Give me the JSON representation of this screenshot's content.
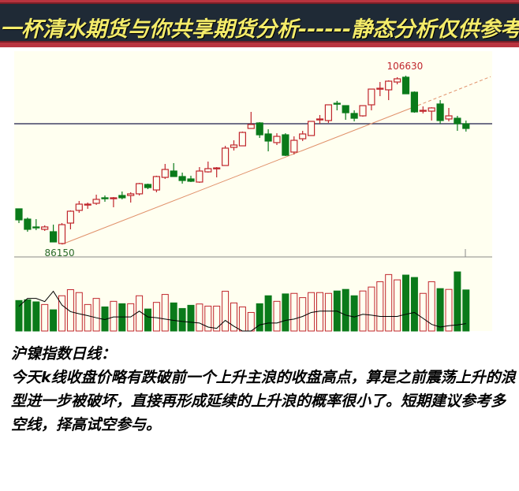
{
  "banner": {
    "title": "一杯清水期货与你共享期货分析------静态分析仅供参考"
  },
  "colors": {
    "up": "#c0262d",
    "down": "#0a7a1a",
    "background": "#fffff0",
    "resistance_line": "#1a1a4a",
    "trend_line": "#e0906a",
    "banner_bg": "#1f2a36",
    "banner_text": "#f4ec6a"
  },
  "chart_data": {
    "type": "candlestick",
    "title": "",
    "high_label": "106630",
    "low_label": "86150",
    "candles": [
      {
        "o": 90460,
        "h": 90460,
        "l": 88730,
        "c": 89120
      },
      {
        "o": 89210,
        "h": 89400,
        "l": 87680,
        "c": 87970
      },
      {
        "o": 88260,
        "h": 89210,
        "l": 87870,
        "c": 88160
      },
      {
        "o": 87970,
        "h": 88450,
        "l": 87780,
        "c": 88260
      },
      {
        "o": 87680,
        "h": 88540,
        "l": 86440,
        "c": 86440
      },
      {
        "o": 86250,
        "h": 88730,
        "l": 86150,
        "c": 88540
      },
      {
        "o": 88730,
        "h": 90270,
        "l": 87970,
        "c": 90170
      },
      {
        "o": 90270,
        "h": 91410,
        "l": 89980,
        "c": 91030
      },
      {
        "o": 90940,
        "h": 91220,
        "l": 90460,
        "c": 91030
      },
      {
        "o": 91130,
        "h": 92180,
        "l": 90940,
        "c": 91610
      },
      {
        "o": 91800,
        "h": 92080,
        "l": 91320,
        "c": 91700
      },
      {
        "o": 91700,
        "h": 91890,
        "l": 90650,
        "c": 91800
      },
      {
        "o": 92080,
        "h": 92560,
        "l": 91610,
        "c": 91800
      },
      {
        "o": 92080,
        "h": 92470,
        "l": 91220,
        "c": 92280
      },
      {
        "o": 92280,
        "h": 93610,
        "l": 92080,
        "c": 93520
      },
      {
        "o": 93420,
        "h": 93520,
        "l": 92850,
        "c": 93040
      },
      {
        "o": 92750,
        "h": 94480,
        "l": 92470,
        "c": 94380
      },
      {
        "o": 94280,
        "h": 95910,
        "l": 94090,
        "c": 95240
      },
      {
        "o": 95050,
        "h": 96010,
        "l": 94380,
        "c": 94380
      },
      {
        "o": 94380,
        "h": 94860,
        "l": 93520,
        "c": 93900
      },
      {
        "o": 94090,
        "h": 94480,
        "l": 93710,
        "c": 93810
      },
      {
        "o": 93710,
        "h": 95530,
        "l": 93610,
        "c": 95050
      },
      {
        "o": 94950,
        "h": 96200,
        "l": 94860,
        "c": 95340
      },
      {
        "o": 95340,
        "h": 95530,
        "l": 94280,
        "c": 95430
      },
      {
        "o": 95720,
        "h": 98110,
        "l": 95720,
        "c": 97830
      },
      {
        "o": 97920,
        "h": 98780,
        "l": 97540,
        "c": 98210
      },
      {
        "o": 98110,
        "h": 99840,
        "l": 98110,
        "c": 99740
      },
      {
        "o": 100220,
        "h": 102230,
        "l": 100220,
        "c": 100700
      },
      {
        "o": 100890,
        "h": 100980,
        "l": 99070,
        "c": 99450
      },
      {
        "o": 99550,
        "h": 100120,
        "l": 97440,
        "c": 98690
      },
      {
        "o": 98500,
        "h": 99640,
        "l": 98210,
        "c": 99260
      },
      {
        "o": 99450,
        "h": 99640,
        "l": 96870,
        "c": 96960
      },
      {
        "o": 97350,
        "h": 99260,
        "l": 97060,
        "c": 98780
      },
      {
        "o": 98970,
        "h": 99930,
        "l": 98690,
        "c": 99550
      },
      {
        "o": 99360,
        "h": 101080,
        "l": 99360,
        "c": 101080
      },
      {
        "o": 101270,
        "h": 101850,
        "l": 100790,
        "c": 101370
      },
      {
        "o": 101180,
        "h": 103090,
        "l": 100890,
        "c": 103090
      },
      {
        "o": 103280,
        "h": 103570,
        "l": 102420,
        "c": 103190
      },
      {
        "o": 102990,
        "h": 102990,
        "l": 101270,
        "c": 102130
      },
      {
        "o": 102040,
        "h": 102420,
        "l": 101080,
        "c": 101460
      },
      {
        "o": 101750,
        "h": 102990,
        "l": 101650,
        "c": 102990
      },
      {
        "o": 103090,
        "h": 105000,
        "l": 102420,
        "c": 105000
      },
      {
        "o": 105000,
        "h": 105860,
        "l": 104140,
        "c": 105100
      },
      {
        "o": 104910,
        "h": 106060,
        "l": 103660,
        "c": 105960
      },
      {
        "o": 105860,
        "h": 106440,
        "l": 105580,
        "c": 106250
      },
      {
        "o": 106440,
        "h": 106630,
        "l": 104430,
        "c": 104430
      },
      {
        "o": 104620,
        "h": 104720,
        "l": 102130,
        "c": 102230
      },
      {
        "o": 102370,
        "h": 102900,
        "l": 102040,
        "c": 102420
      },
      {
        "o": 102320,
        "h": 102800,
        "l": 101180,
        "c": 102710
      },
      {
        "o": 103190,
        "h": 103660,
        "l": 100790,
        "c": 101180
      },
      {
        "o": 101370,
        "h": 102710,
        "l": 101080,
        "c": 101750
      },
      {
        "o": 101460,
        "h": 101750,
        "l": 99930,
        "c": 100790
      },
      {
        "o": 100790,
        "h": 101180,
        "l": 99840,
        "c": 100220
      }
    ],
    "volume": [
      115,
      118,
      110,
      100,
      80,
      133,
      156,
      145,
      100,
      123,
      91,
      112,
      103,
      103,
      133,
      83,
      108,
      138,
      106,
      85,
      97,
      102,
      94,
      94,
      150,
      106,
      91,
      70,
      103,
      133,
      112,
      140,
      142,
      126,
      145,
      145,
      142,
      151,
      157,
      133,
      151,
      166,
      186,
      213,
      193,
      211,
      202,
      142,
      186,
      160,
      157,
      223,
      155
    ],
    "volume_ma": [
      93,
      123,
      123,
      111,
      150,
      98,
      73,
      65,
      58,
      50,
      43,
      53,
      53,
      53,
      75,
      53,
      50,
      45,
      40,
      36,
      33,
      30,
      15,
      10,
      40,
      18,
      0,
      0,
      23,
      30,
      30,
      40,
      45,
      55,
      70,
      75,
      75,
      75,
      60,
      53,
      63,
      60,
      55,
      55,
      55,
      63,
      70,
      48,
      25,
      15,
      20,
      23,
      28
    ],
    "horizontal_line_price": 100790,
    "trend_line": {
      "start": {
        "bar": 6,
        "price": 86150
      },
      "end": {
        "bar": 56,
        "price": 106510
      }
    },
    "grid": false
  },
  "caption": {
    "heading": "沪镍指数日线：",
    "lines": [
      "今天k线收盘价略有跌破前一个上升主浪的收盘高点，算是之前震荡上升的浪",
      "型进一步被破坏，直接再形成延续的上升浪的概率很小了。短期建议参考多",
      "空线，择高试空参与。"
    ]
  }
}
